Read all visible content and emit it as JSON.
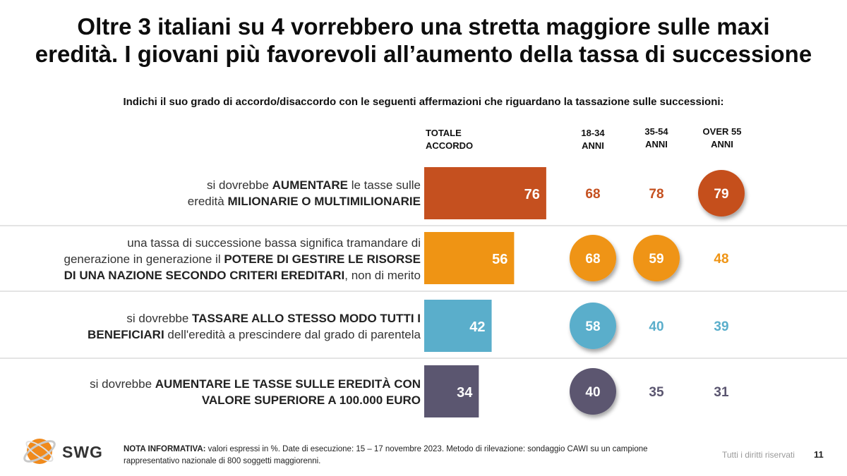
{
  "title": {
    "line1": "Oltre 3 italiani su 4 vorrebbero una stretta maggiore sulle maxi",
    "line2": "eredità. I giovani più favorevoli all’aumento della tassa di successione"
  },
  "question": "Indichi il suo grado di accordo/disaccordo con le seguenti affermazioni che riguardano la tassazione sulle successioni:",
  "columns": {
    "total": {
      "line1": "TOTALE",
      "line2": "ACCORDO"
    },
    "g1": {
      "line1": "18-34",
      "line2": "ANNI"
    },
    "g2": {
      "line1": "35-54",
      "line2": "ANNI"
    },
    "g3": {
      "line1": "OVER 55",
      "line2": "ANNI"
    }
  },
  "rows": [
    {
      "parts": [
        {
          "t": "si dovrebbe ",
          "b": false
        },
        {
          "t": "AUMENTARE",
          "b": true
        },
        {
          "t": " le tasse sulle",
          "b": false
        },
        {
          "br": true
        },
        {
          "t": "eredità ",
          "b": false
        },
        {
          "t": "MILIONARIE O MULTIMILIONARIE",
          "b": true
        }
      ]
    },
    {
      "parts": [
        {
          "t": "una tassa di successione bassa significa tramandare di",
          "b": false
        },
        {
          "br": true
        },
        {
          "t": "generazione in generazione il ",
          "b": false
        },
        {
          "t": "POTERE DI GESTIRE LE RISORSE",
          "b": true
        },
        {
          "br": true
        },
        {
          "t": "DI UNA NAZIONE SECONDO CRITERI EREDITARI",
          "b": true
        },
        {
          "t": ", non di merito",
          "b": false
        }
      ]
    },
    {
      "parts": [
        {
          "t": "si dovrebbe ",
          "b": false
        },
        {
          "t": "TASSARE ALLO STESSO MODO TUTTI I",
          "b": true
        },
        {
          "br": true
        },
        {
          "t": "BENEFICIARI",
          "b": true
        },
        {
          "t": " dell'eredità a prescindere dal grado di parentela",
          "b": false
        }
      ]
    },
    {
      "parts": [
        {
          "t": "si dovrebbe ",
          "b": false
        },
        {
          "t": "AUMENTARE LE TASSE SULLE EREDITÀ CON",
          "b": true
        },
        {
          "br": true
        },
        {
          "t": "VALORE SUPERIORE A 100.000 EURO",
          "b": true
        }
      ]
    }
  ],
  "chart_data": {
    "type": "bar",
    "orientation": "horizontal",
    "unit": "%",
    "xlim": [
      0,
      100
    ],
    "categories": [
      "si dovrebbe AUMENTARE le tasse sulle eredità MILIONARIE O MULTIMILIONARIE",
      "una tassa di successione bassa significa tramandare di generazione in generazione il POTERE DI GESTIRE LE RISORSE DI UNA NAZIONE SECONDO CRITERI EREDITARI, non di merito",
      "si dovrebbe TASSARE ALLO STESSO MODO TUTTI I BENEFICIARI dell'eredità a prescindere dal grado di parentela",
      "si dovrebbe AUMENTARE LE TASSE SULLE EREDITÀ CON VALORE SUPERIORE A 100.000 EURO"
    ],
    "series": [
      {
        "name": "TOTALE ACCORDO",
        "values": [
          76,
          56,
          42,
          34
        ]
      },
      {
        "name": "18-34 ANNI",
        "values": [
          68,
          68,
          58,
          40
        ]
      },
      {
        "name": "35-54 ANNI",
        "values": [
          78,
          59,
          40,
          35
        ]
      },
      {
        "name": "OVER 55 ANNI",
        "values": [
          79,
          48,
          39,
          31
        ]
      }
    ],
    "highlighted": [
      [
        "OVER 55 ANNI"
      ],
      [
        "18-34 ANNI",
        "35-54 ANNI"
      ],
      [
        "18-34 ANNI"
      ],
      [
        "18-34 ANNI"
      ]
    ],
    "row_colors": [
      "#c5501f",
      "#ef9414",
      "#5aaecb",
      "#5b5670"
    ]
  },
  "footer": {
    "logo_text": "SWG",
    "note_bold": "NOTA INFORMATIVA:",
    "note_line1": " valori espressi in %. Date di esecuzione: 15 – 17 novembre 2023. Metodo di rilevazione: sondaggio CAWI su un campione",
    "note_line2": "rappresentativo nazionale di 800 soggetti maggiorenni.",
    "rights": "Tutti i diritti riservati",
    "page": "11"
  }
}
